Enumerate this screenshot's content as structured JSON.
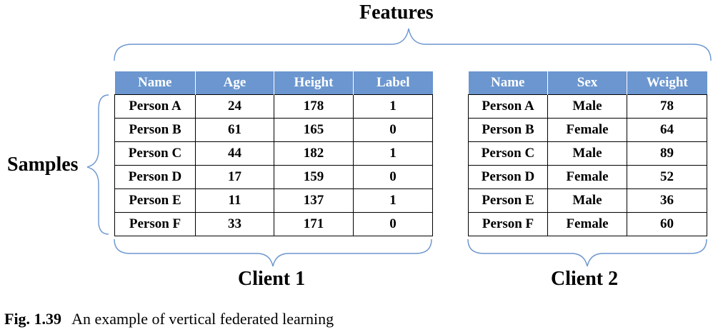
{
  "labels": {
    "features": "Features",
    "samples": "Samples",
    "client1": "Client 1",
    "client2": "Client 2"
  },
  "client1_table": {
    "headers": [
      "Name",
      "Age",
      "Height",
      "Label"
    ],
    "rows": [
      [
        "Person A",
        "24",
        "178",
        "1"
      ],
      [
        "Person B",
        "61",
        "165",
        "0"
      ],
      [
        "Person C",
        "44",
        "182",
        "1"
      ],
      [
        "Person D",
        "17",
        "159",
        "0"
      ],
      [
        "Person E",
        "11",
        "137",
        "1"
      ],
      [
        "Person F",
        "33",
        "171",
        "0"
      ]
    ]
  },
  "client2_table": {
    "headers": [
      "Name",
      "Sex",
      "Weight"
    ],
    "rows": [
      [
        "Person A",
        "Male",
        "78"
      ],
      [
        "Person B",
        "Female",
        "64"
      ],
      [
        "Person C",
        "Male",
        "89"
      ],
      [
        "Person D",
        "Female",
        "52"
      ],
      [
        "Person E",
        "Male",
        "36"
      ],
      [
        "Person F",
        "Female",
        "60"
      ]
    ]
  },
  "caption": {
    "number": "Fig. 1.39",
    "text": "An example of vertical federated learning"
  },
  "colors": {
    "header_fill": "#6b96cf",
    "brace_stroke": "#6b96cf"
  }
}
